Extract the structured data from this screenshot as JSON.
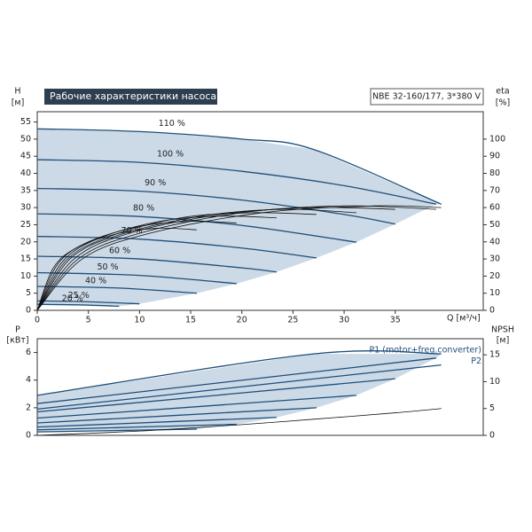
{
  "chart_data": [
    {
      "type": "line",
      "title": "Рабочие характеристики насоса",
      "model": "NBE 32-160/177, 3*380 V",
      "x_label": "Q [м³/ч]",
      "y_label": "H",
      "y_unit": "[м]",
      "y2_label": "eta",
      "y2_unit": "[%]",
      "xlim": [
        0,
        43.6
      ],
      "xticks": [
        0,
        5,
        10,
        15,
        20,
        25,
        30,
        35
      ],
      "ylim": [
        0,
        58
      ],
      "yticks": [
        0,
        5,
        10,
        15,
        20,
        25,
        30,
        35,
        40,
        45,
        50,
        55
      ],
      "y2lim": [
        0,
        116
      ],
      "y2ticks": [
        0,
        10,
        20,
        30,
        40,
        50,
        60,
        70,
        80,
        90,
        100
      ],
      "area_color": "#c3d3e3",
      "series_label_position": "inside",
      "series": [
        {
          "name": "110 %",
          "color": "#1f4e79",
          "x": [
            0,
            10,
            20,
            27,
            39.5
          ],
          "values": [
            53,
            52.2,
            50,
            47,
            31
          ]
        },
        {
          "name": "100 %",
          "color": "#1f4e79",
          "x": [
            0,
            10,
            20,
            30,
            39
          ],
          "values": [
            44,
            43.2,
            40.6,
            36.4,
            31
          ]
        },
        {
          "name": "90 %",
          "color": "#1f4e79",
          "x": [
            0,
            10,
            20,
            30,
            35
          ],
          "values": [
            35.6,
            34.8,
            32.2,
            28,
            25.2
          ]
        },
        {
          "name": "80 %",
          "color": "#1f4e79",
          "x": [
            0,
            10,
            20,
            31.2
          ],
          "values": [
            28.2,
            27.4,
            24.8,
            19.9
          ]
        },
        {
          "name": "70 %",
          "color": "#1f4e79",
          "x": [
            0,
            10,
            20,
            27.3
          ],
          "values": [
            21.6,
            20.8,
            18.2,
            15.3
          ]
        },
        {
          "name": "60 %",
          "color": "#1f4e79",
          "x": [
            0,
            10,
            20,
            23.4
          ],
          "values": [
            15.8,
            15,
            12.4,
            11.2
          ]
        },
        {
          "name": "50 %",
          "color": "#1f4e79",
          "x": [
            0,
            10,
            19.5
          ],
          "values": [
            11,
            10.2,
            7.8
          ]
        },
        {
          "name": "40 %",
          "color": "#1f4e79",
          "x": [
            0,
            8,
            15.6
          ],
          "values": [
            7,
            6.5,
            5
          ]
        },
        {
          "name": "25 %",
          "color": "#1f4e79",
          "x": [
            0,
            5,
            10
          ],
          "values": [
            2.75,
            2.5,
            1.9
          ]
        },
        {
          "name": "20 %",
          "color": "#1f4e79",
          "x": [
            0,
            4,
            8
          ],
          "values": [
            1.76,
            1.6,
            1.2
          ]
        },
        {
          "axis": "y2",
          "color": "#111111",
          "x": [
            0,
            4.4,
            11,
            22,
            33,
            39.5
          ],
          "values": [
            0,
            30,
            45,
            57,
            61,
            60
          ]
        },
        {
          "axis": "y2",
          "color": "#111111",
          "x": [
            0,
            4,
            10,
            20,
            30,
            39
          ],
          "values": [
            0,
            30,
            45,
            57,
            61,
            59
          ]
        },
        {
          "axis": "y2",
          "color": "#111111",
          "x": [
            0,
            3.6,
            9,
            18,
            27,
            35
          ],
          "values": [
            0,
            30,
            45,
            56,
            60,
            59
          ]
        },
        {
          "axis": "y2",
          "color": "#111111",
          "x": [
            0,
            3.2,
            8,
            16,
            24,
            31.2
          ],
          "values": [
            0,
            30,
            44,
            55,
            59,
            57
          ]
        },
        {
          "axis": "y2",
          "color": "#111111",
          "x": [
            0,
            2.8,
            7,
            14,
            21,
            27.3
          ],
          "values": [
            0,
            29,
            43,
            54,
            57,
            56
          ]
        },
        {
          "axis": "y2",
          "color": "#111111",
          "x": [
            0,
            2.4,
            6,
            12,
            18,
            23.4
          ],
          "values": [
            0,
            28,
            42,
            52,
            55,
            54
          ]
        },
        {
          "axis": "y2",
          "color": "#111111",
          "x": [
            0,
            2,
            5,
            10,
            15,
            19.5
          ],
          "values": [
            0,
            27,
            40,
            49,
            52,
            51
          ]
        },
        {
          "axis": "y2",
          "color": "#111111",
          "x": [
            0,
            1.6,
            4,
            8,
            12,
            15.6
          ],
          "values": [
            0,
            25,
            37,
            45,
            48,
            47
          ]
        }
      ]
    },
    {
      "type": "line",
      "y_label": "P",
      "y_unit": "[кВт]",
      "y2_label": "NPSH",
      "y2_unit": "[м]",
      "xlim": [
        0,
        43.6
      ],
      "ylim": [
        0,
        7
      ],
      "yticks": [
        0,
        2,
        4,
        6
      ],
      "y2lim": [
        0,
        18
      ],
      "y2ticks": [
        0,
        5,
        10,
        15
      ],
      "area_color": "#c3d3e3",
      "series_label_position": "end",
      "series": [
        {
          "name": "P1 (motor+freq.converter)",
          "color": "#1f4e79",
          "x": [
            0,
            27,
            39.5
          ],
          "values": [
            2.9,
            5.9,
            5.9
          ]
        },
        {
          "color": "#1f4e79",
          "x": [
            0,
            39
          ],
          "values": [
            2.3,
            5.6
          ]
        },
        {
          "color": "#1f4e79",
          "x": [
            0,
            35
          ],
          "values": [
            1.7,
            4.1
          ]
        },
        {
          "color": "#1f4e79",
          "x": [
            0,
            31.2
          ],
          "values": [
            1.25,
            2.9
          ]
        },
        {
          "color": "#1f4e79",
          "x": [
            0,
            27.3
          ],
          "values": [
            0.9,
            2
          ]
        },
        {
          "color": "#1f4e79",
          "x": [
            0,
            23.4
          ],
          "values": [
            0.6,
            1.3
          ]
        },
        {
          "color": "#1f4e79",
          "x": [
            0,
            19.5
          ],
          "values": [
            0.4,
            0.8
          ]
        },
        {
          "color": "#1f4e79",
          "x": [
            0,
            15.6
          ],
          "values": [
            0.25,
            0.45
          ]
        },
        {
          "axis": "y2",
          "color": "#111111",
          "x": [
            0,
            10,
            20,
            27,
            35,
            39.5
          ],
          "values": [
            0,
            0.8,
            2,
            3,
            4.2,
            5
          ]
        },
        {
          "name": "P2",
          "color": "#1f4e79",
          "x": [
            0,
            39.5
          ],
          "values": [
            1.9,
            5.1
          ]
        }
      ]
    }
  ]
}
